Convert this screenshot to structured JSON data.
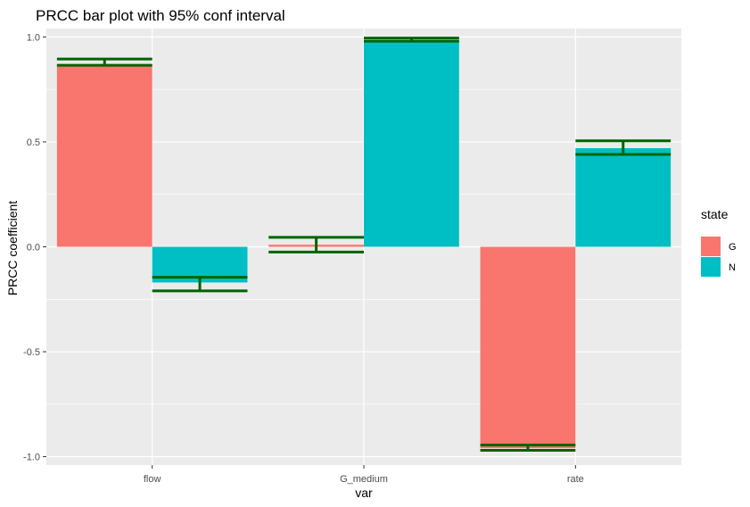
{
  "chart_data": {
    "type": "bar",
    "title": "PRCC bar plot with 95% conf interval",
    "xlabel": "var",
    "ylabel": "PRCC coefficient",
    "categories": [
      "flow",
      "G_medium",
      "rate"
    ],
    "ylim": [
      -1.04,
      1.04
    ],
    "yticks": [
      -1.0,
      -0.5,
      0.0,
      0.5,
      1.0
    ],
    "ytick_labels": [
      "-1.0",
      "-0.5",
      "0.0",
      "0.5",
      "1.0"
    ],
    "grid": true,
    "legend": {
      "title": "state",
      "position": "right"
    },
    "series": [
      {
        "name": "G",
        "color": "#F8766D",
        "values": [
          0.87,
          0.01,
          -0.96
        ],
        "ci_low": [
          0.865,
          -0.025,
          -0.97
        ],
        "ci_high": [
          0.895,
          0.045,
          -0.945
        ]
      },
      {
        "name": "N",
        "color": "#00BFC4",
        "values": [
          -0.17,
          0.985,
          0.47
        ],
        "ci_low": [
          -0.21,
          0.98,
          0.44
        ],
        "ci_high": [
          -0.145,
          0.995,
          0.505
        ]
      }
    ],
    "errorbar_color": "#006400",
    "panel_color": "#EBEBEB",
    "grid_color": "#FFFFFF"
  }
}
